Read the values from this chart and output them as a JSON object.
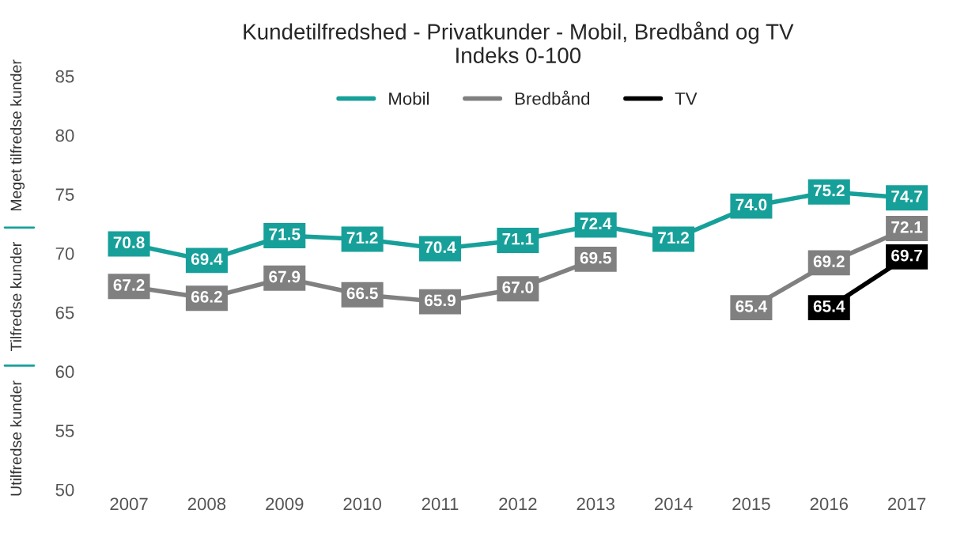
{
  "chart_data": {
    "type": "line",
    "title": "Kundetilfredshed - Privatkunder - Mobil, Bredbånd og TV\nIndeks 0-100",
    "categories": [
      "2007",
      "2008",
      "2009",
      "2010",
      "2011",
      "2012",
      "2013",
      "2014",
      "2015",
      "2016",
      "2017"
    ],
    "series": [
      {
        "name": "Mobil",
        "color": "#17a09a",
        "values": [
          70.8,
          69.4,
          71.5,
          71.2,
          70.4,
          71.1,
          72.4,
          71.2,
          74.0,
          75.2,
          74.7
        ],
        "value_labels": [
          "70.8",
          "69.4",
          "71.5",
          "71.2",
          "70.4",
          "71.1",
          "72.4",
          "71.2",
          "74.0",
          "75.2",
          "74.7"
        ]
      },
      {
        "name": "Bredbånd",
        "color": "#808080",
        "values": [
          67.2,
          66.2,
          67.9,
          66.5,
          65.9,
          67.0,
          69.5,
          null,
          65.4,
          69.2,
          72.1
        ],
        "value_labels": [
          "67.2",
          "66.2",
          "67.9",
          "66.5",
          "65.9",
          "67.0",
          "69.5",
          null,
          "65.4",
          "69.2",
          "72.1"
        ]
      },
      {
        "name": "TV",
        "color": "#000000",
        "values": [
          null,
          null,
          null,
          null,
          null,
          null,
          null,
          null,
          null,
          65.4,
          69.7
        ],
        "value_labels": [
          null,
          null,
          null,
          null,
          null,
          null,
          null,
          null,
          null,
          "65.4",
          "69.7"
        ]
      }
    ],
    "ylim": [
      50,
      85
    ],
    "yticks": [
      50,
      55,
      60,
      65,
      70,
      75,
      80,
      85
    ],
    "annotations": [
      "Meget tilfredse kunder",
      "Tilfredse kunder",
      "Utilfredse kunder"
    ],
    "legend": "top",
    "marker": "square",
    "line_style": "solid"
  }
}
